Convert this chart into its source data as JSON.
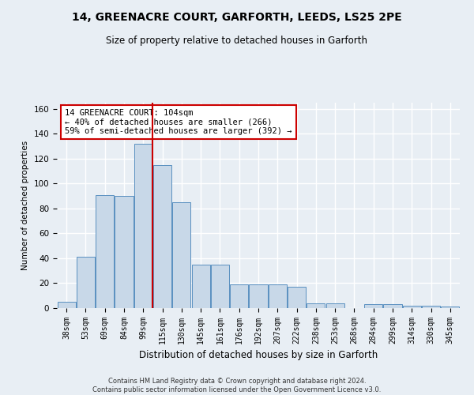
{
  "title_line1": "14, GREENACRE COURT, GARFORTH, LEEDS, LS25 2PE",
  "title_line2": "Size of property relative to detached houses in Garforth",
  "xlabel": "Distribution of detached houses by size in Garforth",
  "ylabel": "Number of detached properties",
  "categories": [
    "38sqm",
    "53sqm",
    "69sqm",
    "84sqm",
    "99sqm",
    "115sqm",
    "130sqm",
    "145sqm",
    "161sqm",
    "176sqm",
    "192sqm",
    "207sqm",
    "222sqm",
    "238sqm",
    "253sqm",
    "268sqm",
    "284sqm",
    "299sqm",
    "314sqm",
    "330sqm",
    "345sqm"
  ],
  "values": [
    5,
    41,
    91,
    90,
    132,
    115,
    85,
    35,
    35,
    19,
    19,
    19,
    17,
    4,
    4,
    0,
    3,
    3,
    2,
    2,
    1
  ],
  "bar_color": "#c8d8e8",
  "bar_edge_color": "#5a90c0",
  "vline_x": 4.5,
  "vline_color": "#cc0000",
  "annotation_text": "14 GREENACRE COURT: 104sqm\n← 40% of detached houses are smaller (266)\n59% of semi-detached houses are larger (392) →",
  "annotation_box_color": "#ffffff",
  "annotation_box_edge_color": "#cc0000",
  "ylim": [
    0,
    165
  ],
  "yticks": [
    0,
    20,
    40,
    60,
    80,
    100,
    120,
    140,
    160
  ],
  "footer_line1": "Contains HM Land Registry data © Crown copyright and database right 2024.",
  "footer_line2": "Contains public sector information licensed under the Open Government Licence v3.0.",
  "bg_color": "#e8eef4",
  "plot_bg_color": "#e8eef4",
  "grid_color": "#ffffff"
}
